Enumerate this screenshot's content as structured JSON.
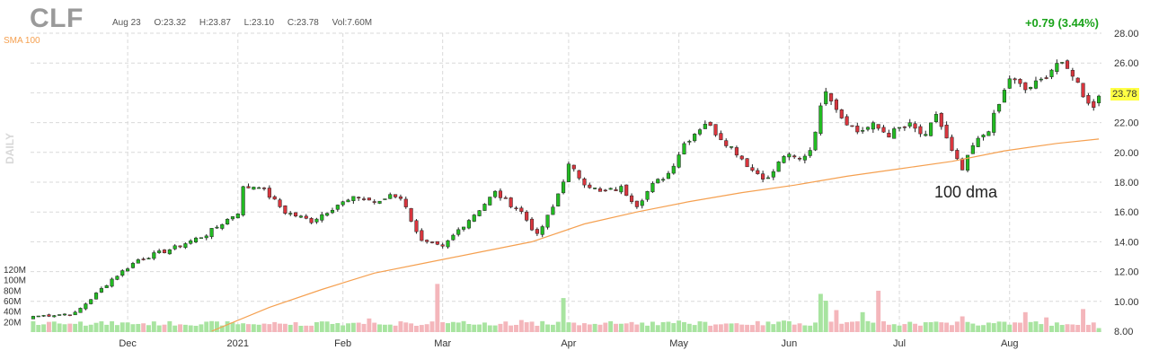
{
  "header": {
    "ticker": "CLF",
    "date": "Aug 23",
    "open": "O:23.32",
    "high": "H:23.87",
    "low": "L:23.10",
    "close": "C:23.78",
    "volume": "Vol:7.60M",
    "change": "+0.79 (3.44%)",
    "last_price": "23.78"
  },
  "labels": {
    "sma": "SMA 100",
    "period": "DAILY",
    "annotation": "100 dma"
  },
  "colors": {
    "up": "#22bb22",
    "down": "#d9363e",
    "up_volume": "#a8e4a0",
    "down_volume": "#f4b6bb",
    "sma": "#f5a050",
    "grid": "#d9d9d9",
    "highlight": "#ffff44"
  },
  "chart_data": {
    "type": "candlestick",
    "interval": "daily",
    "price_axis": {
      "ticks": [
        "28.00",
        "26.00",
        "24.00",
        "22.00",
        "20.00",
        "18.00",
        "16.00",
        "14.00",
        "12.00",
        "10.00",
        "8.00"
      ],
      "ylim": [
        8,
        28
      ]
    },
    "volume_axis": {
      "ticks": [
        "120M",
        "100M",
        "80M",
        "60M",
        "40M",
        "20M"
      ],
      "ylim": [
        0,
        120
      ]
    },
    "x_ticks": [
      "Dec",
      "2021",
      "Feb",
      "Mar",
      "Apr",
      "May",
      "Jun",
      "Jul",
      "Aug"
    ],
    "x_tick_index": [
      18,
      39,
      59,
      78,
      102,
      123,
      144,
      165,
      186
    ],
    "grid": true,
    "anchors": [
      [
        0,
        9.0
      ],
      [
        8,
        9.2
      ],
      [
        12,
        10.5
      ],
      [
        15,
        11.5
      ],
      [
        20,
        12.8
      ],
      [
        27,
        13.6
      ],
      [
        33,
        14.5
      ],
      [
        39,
        16.0
      ],
      [
        40,
        17.6
      ],
      [
        43,
        17.8
      ],
      [
        48,
        16.0
      ],
      [
        53,
        15.4
      ],
      [
        58,
        16.5
      ],
      [
        62,
        17.0
      ],
      [
        66,
        16.6
      ],
      [
        68,
        17.2
      ],
      [
        70,
        17.0
      ],
      [
        74,
        14.0
      ],
      [
        78,
        13.6
      ],
      [
        81,
        14.8
      ],
      [
        85,
        16.2
      ],
      [
        88,
        17.3
      ],
      [
        93,
        16.0
      ],
      [
        96,
        14.4
      ],
      [
        99,
        16.3
      ],
      [
        102,
        19.1
      ],
      [
        105,
        18.0
      ],
      [
        108,
        17.3
      ],
      [
        112,
        17.6
      ],
      [
        115,
        16.5
      ],
      [
        118,
        17.8
      ],
      [
        121,
        18.6
      ],
      [
        124,
        20.6
      ],
      [
        128,
        22.0
      ],
      [
        131,
        21.0
      ],
      [
        134,
        20.0
      ],
      [
        137,
        18.8
      ],
      [
        140,
        18.2
      ],
      [
        143,
        19.8
      ],
      [
        146,
        19.5
      ],
      [
        148,
        20.2
      ],
      [
        151,
        24.3
      ],
      [
        154,
        22.4
      ],
      [
        157,
        21.4
      ],
      [
        160,
        21.8
      ],
      [
        163,
        21.2
      ],
      [
        165,
        21.6
      ],
      [
        167,
        21.8
      ],
      [
        170,
        21.0
      ],
      [
        172,
        22.6
      ],
      [
        175,
        20.0
      ],
      [
        177,
        18.8
      ],
      [
        179,
        20.4
      ],
      [
        182,
        21.6
      ],
      [
        184,
        23.2
      ],
      [
        186,
        25.0
      ],
      [
        189,
        24.2
      ],
      [
        192,
        24.8
      ],
      [
        195,
        26.0
      ],
      [
        198,
        25.3
      ],
      [
        200,
        23.9
      ],
      [
        202,
        23.0
      ],
      [
        203,
        23.78
      ]
    ],
    "sma_100": [
      [
        34,
        8.0
      ],
      [
        45,
        9.6
      ],
      [
        55,
        10.8
      ],
      [
        65,
        11.9
      ],
      [
        75,
        12.6
      ],
      [
        85,
        13.3
      ],
      [
        95,
        14.0
      ],
      [
        105,
        15.2
      ],
      [
        115,
        16.0
      ],
      [
        125,
        16.7
      ],
      [
        135,
        17.3
      ],
      [
        145,
        17.8
      ],
      [
        155,
        18.4
      ],
      [
        165,
        18.9
      ],
      [
        175,
        19.4
      ],
      [
        185,
        20.1
      ],
      [
        195,
        20.6
      ],
      [
        203,
        20.9
      ]
    ],
    "volume_spikes": [
      [
        9,
        20
      ],
      [
        43,
        14
      ],
      [
        62,
        18
      ],
      [
        64,
        26
      ],
      [
        73,
        12
      ],
      [
        77,
        92
      ],
      [
        93,
        23
      ],
      [
        101,
        65
      ],
      [
        123,
        22
      ],
      [
        143,
        22
      ],
      [
        150,
        73
      ],
      [
        151,
        60
      ],
      [
        153,
        42
      ],
      [
        158,
        38
      ],
      [
        161,
        79
      ],
      [
        174,
        18
      ],
      [
        177,
        30
      ],
      [
        189,
        38
      ],
      [
        193,
        28
      ],
      [
        200,
        44
      ]
    ],
    "volume_base_millions": 12,
    "last": {
      "date": "Aug 23",
      "open": 23.32,
      "high": 23.87,
      "low": 23.1,
      "close": 23.78,
      "volume_millions": 7.6,
      "change": 0.79,
      "change_pct": 3.44
    }
  }
}
